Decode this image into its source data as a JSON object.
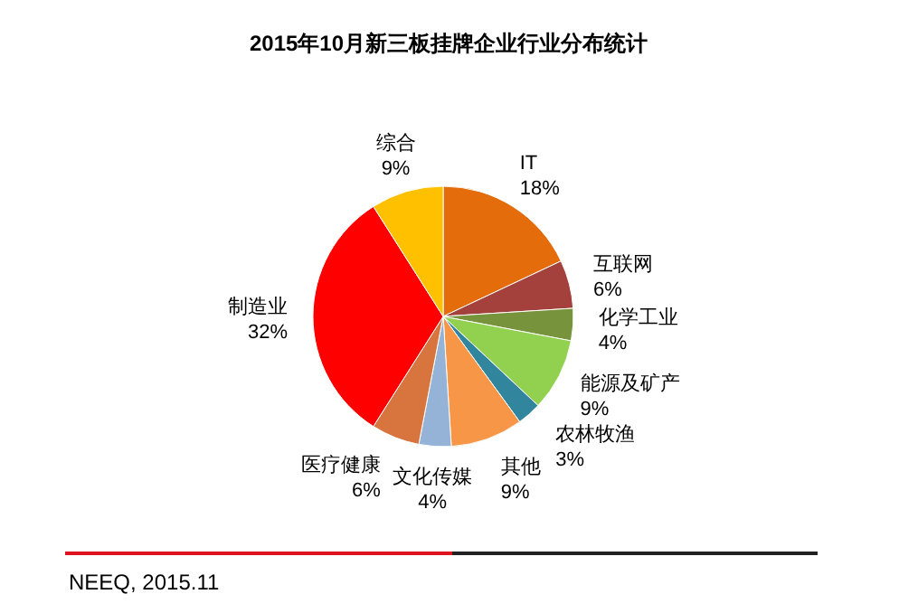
{
  "chart_data": {
    "type": "pie",
    "title": "2015年10月新三板挂牌企业行业分布统计",
    "categories": [
      "IT",
      "互联网",
      "化学工业",
      "能源及矿产",
      "农林牧渔",
      "其他",
      "文化传媒",
      "医疗健康",
      "制造业",
      "综合"
    ],
    "values": [
      18,
      6,
      4,
      9,
      3,
      9,
      4,
      6,
      32,
      9
    ],
    "colors": [
      "#e46c0a",
      "#a5413c",
      "#77933c",
      "#92d050",
      "#31859c",
      "#f79646",
      "#95b3d7",
      "#d8743e",
      "#ff0000",
      "#ffc000"
    ],
    "value_labels": [
      "18%",
      "6%",
      "4%",
      "9%",
      "3%",
      "9%",
      "4%",
      "6%",
      "32%",
      "9%"
    ],
    "legend": false,
    "annotations": [
      "NEEQ, 2015.11"
    ]
  }
}
